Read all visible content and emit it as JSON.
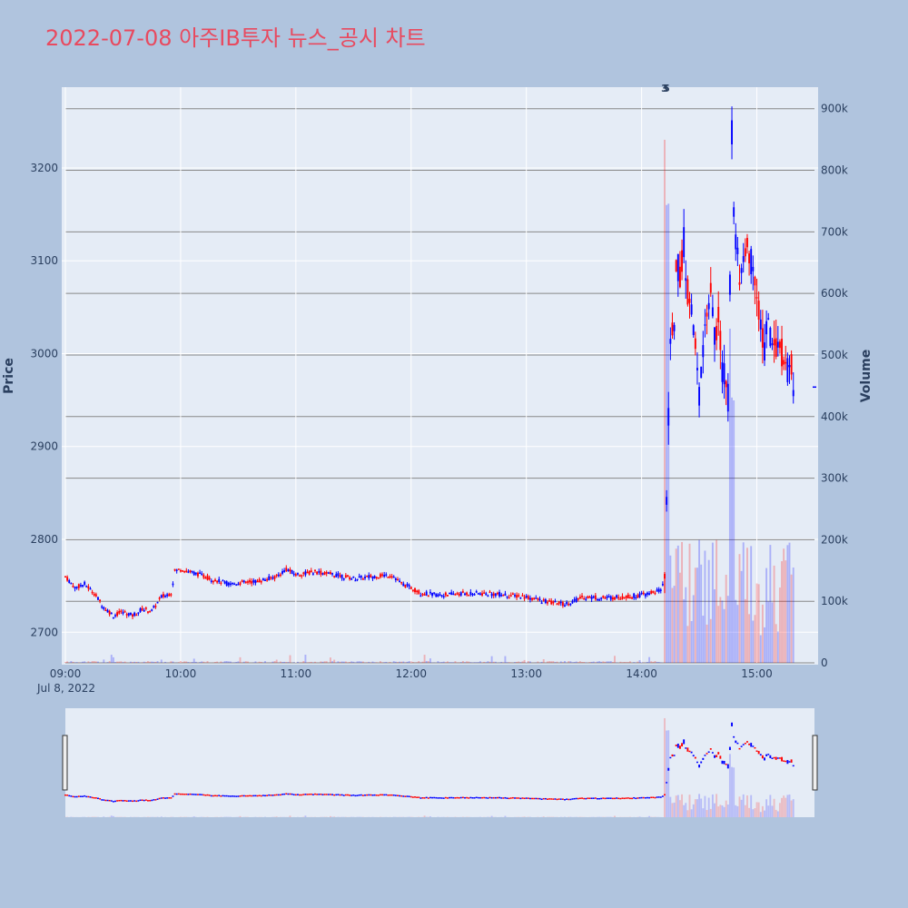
{
  "title": "2022-07-08 아주IB투자 뉴스_공시 차트",
  "chart_data": {
    "type": "candlestick",
    "title": "2022-07-08 아주IB투자 뉴스_공시 차트",
    "ylabel": "Price",
    "y2label": "Volume",
    "date_label": "Jul 8, 2022",
    "x_ticks": [
      "09:00",
      "10:00",
      "11:00",
      "12:00",
      "13:00",
      "14:00",
      "15:00"
    ],
    "y_ticks": [
      2700,
      2800,
      2900,
      3000,
      3100,
      3200
    ],
    "y2_ticks": [
      "0",
      "100k",
      "200k",
      "300k",
      "400k",
      "500k",
      "600k",
      "700k",
      "800k",
      "900k"
    ],
    "y2_tick_values": [
      0,
      100000,
      200000,
      300000,
      400000,
      500000,
      600000,
      700000,
      800000,
      900000
    ],
    "ylim": [
      2667,
      3287
    ],
    "y2lim": [
      0,
      935000
    ],
    "xlim": [
      "09:00",
      "15:30"
    ],
    "annotations": [
      {
        "time": "14:12",
        "text": "3"
      },
      {
        "time": "14:12",
        "text": "5"
      }
    ],
    "up_color": "#ff0000",
    "down_color": "#0000ff",
    "price_keypoints": [
      [
        "09:00",
        2760
      ],
      [
        "09:05",
        2748
      ],
      [
        "09:10",
        2752
      ],
      [
        "09:15",
        2742
      ],
      [
        "09:20",
        2727
      ],
      [
        "09:25",
        2718
      ],
      [
        "09:30",
        2722
      ],
      [
        "09:35",
        2718
      ],
      [
        "09:40",
        2725
      ],
      [
        "09:45",
        2723
      ],
      [
        "09:50",
        2738
      ],
      [
        "09:55",
        2742
      ],
      [
        "09:57",
        2766
      ],
      [
        "10:00",
        2768
      ],
      [
        "10:05",
        2765
      ],
      [
        "10:10",
        2762
      ],
      [
        "10:15",
        2758
      ],
      [
        "10:20",
        2755
      ],
      [
        "10:25",
        2752
      ],
      [
        "10:30",
        2753
      ],
      [
        "10:40",
        2755
      ],
      [
        "10:50",
        2760
      ],
      [
        "10:55",
        2768
      ],
      [
        "11:00",
        2762
      ],
      [
        "11:10",
        2765
      ],
      [
        "11:20",
        2762
      ],
      [
        "11:30",
        2758
      ],
      [
        "11:40",
        2760
      ],
      [
        "11:50",
        2762
      ],
      [
        "11:55",
        2752
      ],
      [
        "12:00",
        2748
      ],
      [
        "12:05",
        2742
      ],
      [
        "12:15",
        2740
      ],
      [
        "12:30",
        2742
      ],
      [
        "12:45",
        2741
      ],
      [
        "13:00",
        2738
      ],
      [
        "13:10",
        2733
      ],
      [
        "13:20",
        2730
      ],
      [
        "13:30",
        2738
      ],
      [
        "13:40",
        2737
      ],
      [
        "13:50",
        2738
      ],
      [
        "14:00",
        2740
      ],
      [
        "14:10",
        2745
      ],
      [
        "14:12",
        2760
      ],
      [
        "14:13",
        2850
      ],
      [
        "14:15",
        3000
      ],
      [
        "14:17",
        3040
      ],
      [
        "14:18",
        3100
      ],
      [
        "14:20",
        3080
      ],
      [
        "14:22",
        3120
      ],
      [
        "14:24",
        3070
      ],
      [
        "14:26",
        3040
      ],
      [
        "14:28",
        3000
      ],
      [
        "14:30",
        2960
      ],
      [
        "14:32",
        3010
      ],
      [
        "14:34",
        3050
      ],
      [
        "14:36",
        3060
      ],
      [
        "14:38",
        3020
      ],
      [
        "14:40",
        3040
      ],
      [
        "14:42",
        2980
      ],
      [
        "14:44",
        2970
      ],
      [
        "14:45",
        2950
      ],
      [
        "14:46",
        3080
      ],
      [
        "14:47",
        3240
      ],
      [
        "14:48",
        3150
      ],
      [
        "14:50",
        3100
      ],
      [
        "14:52",
        3080
      ],
      [
        "14:54",
        3120
      ],
      [
        "14:56",
        3110
      ],
      [
        "14:58",
        3090
      ],
      [
        "15:00",
        3060
      ],
      [
        "15:02",
        3030
      ],
      [
        "15:04",
        3010
      ],
      [
        "15:06",
        3030
      ],
      [
        "15:08",
        3020
      ],
      [
        "15:10",
        3000
      ],
      [
        "15:12",
        3010
      ],
      [
        "15:14",
        2990
      ],
      [
        "15:16",
        2985
      ],
      [
        "15:18",
        2990
      ],
      [
        "15:19",
        2960
      ]
    ],
    "close": {
      "time": "15:30",
      "value": 2964
    }
  }
}
